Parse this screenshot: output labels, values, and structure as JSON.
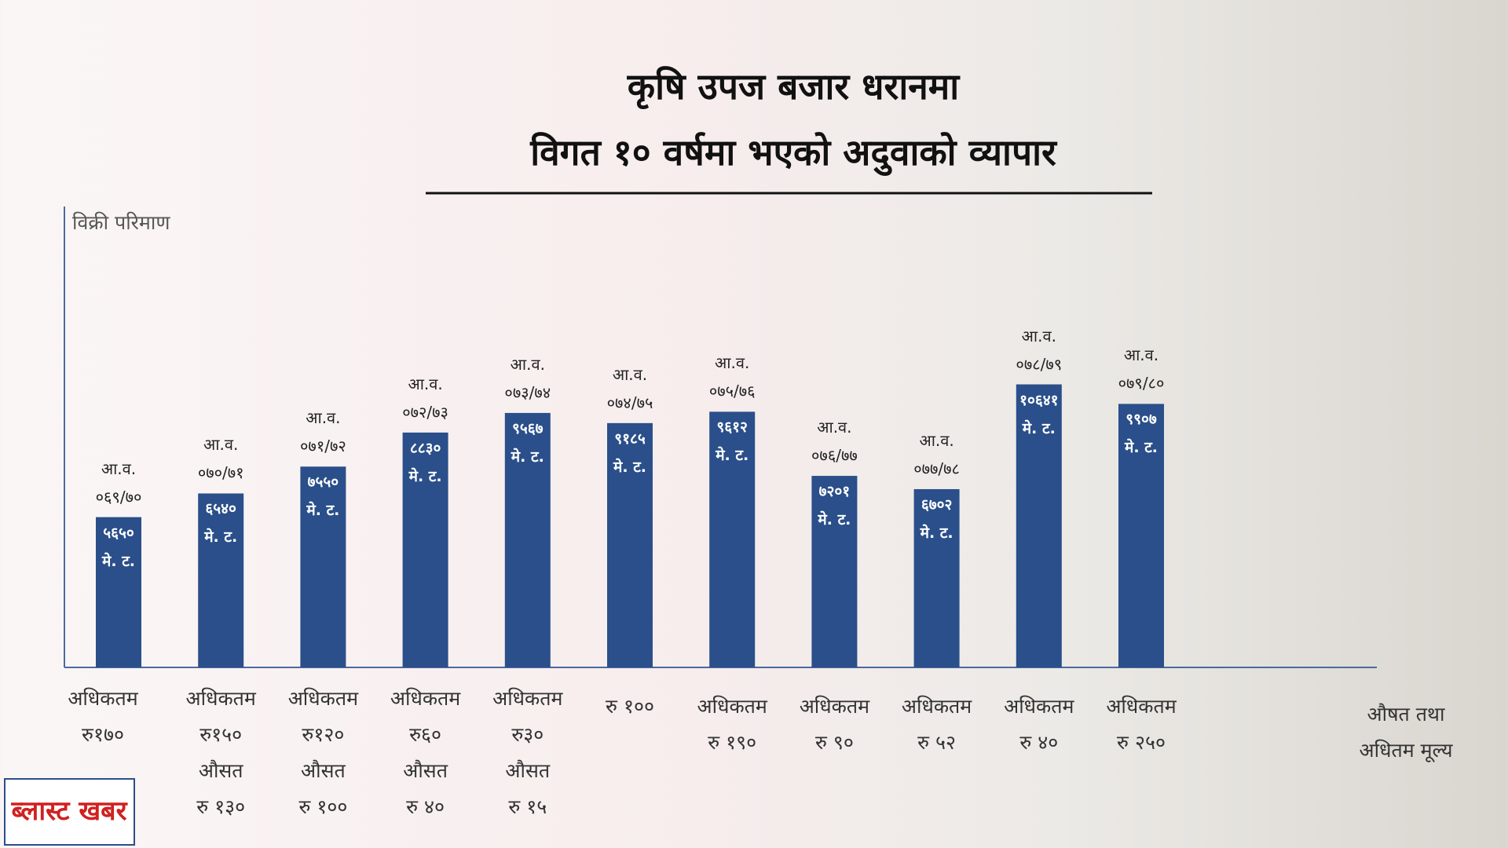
{
  "chart_data": {
    "type": "bar",
    "title": [
      "कृषि उपज बजार धरानमा",
      "विगत १० वर्षमा भएको अदुवाको व्यापार"
    ],
    "y_label": "विक्री परिमाण",
    "categories": [
      "आ.व. ०६९/७०",
      "आ.व. ०७०/७१",
      "आ.व. ०७१/७२",
      "आ.व. ०७२/७३",
      "आ.व. ०७३/७४",
      "आ.व. ०७४/७५",
      "आ.व. ०७५/७६",
      "आ.व. ०७६/७७",
      "आ.व. ०७७/७८",
      "आ.व. ०७८/७९",
      "आ.व. ०७९/८०"
    ],
    "values": [
      5650,
      6540,
      7550,
      8830,
      9567,
      9185,
      9612,
      7201,
      6702,
      10641,
      9907
    ],
    "value_labels": [
      "५६५० मे. ट.",
      "६५४० मे. ट.",
      "७५५० मे. ट.",
      "८८३० मे. ट.",
      "९५६७ मे. ट.",
      "९१८५ मे. ट.",
      "९६१२ मे. ट.",
      "७२०१ मे. ट.",
      "६७०२ मे. ट.",
      "१०६४१ मे. ट.",
      "९९०७ मे. ट."
    ],
    "color": "#2a4f8a",
    "ylim": [
      0,
      16000
    ],
    "price_labels": [
      [
        "अधिकतम",
        "रु१७०"
      ],
      [
        "अधिकतम",
        "रु१५०",
        "औसत",
        "रु १३०"
      ],
      [
        "अधिकतम",
        "रु१२०",
        "औसत",
        "रु १००"
      ],
      [
        "अधिकतम",
        "रु६०",
        "औसत",
        "रु ४०"
      ],
      [
        "अधिकतम",
        "रु३०",
        "औसत",
        "रु १५"
      ],
      [
        "रु १००"
      ],
      [
        "अधिकतम",
        "रु १९०"
      ],
      [
        "अधिकतम",
        "रु ९०"
      ],
      [
        "अधिकतम",
        "रु ५२"
      ],
      [
        "अधिकतम",
        "रु ४०"
      ],
      [
        "अधिकतम",
        "रु २५०"
      ]
    ],
    "price_caption": [
      "औषत तथा",
      "अधितम मूल्य"
    ],
    "logo": "ब्लास्ट खबर"
  }
}
